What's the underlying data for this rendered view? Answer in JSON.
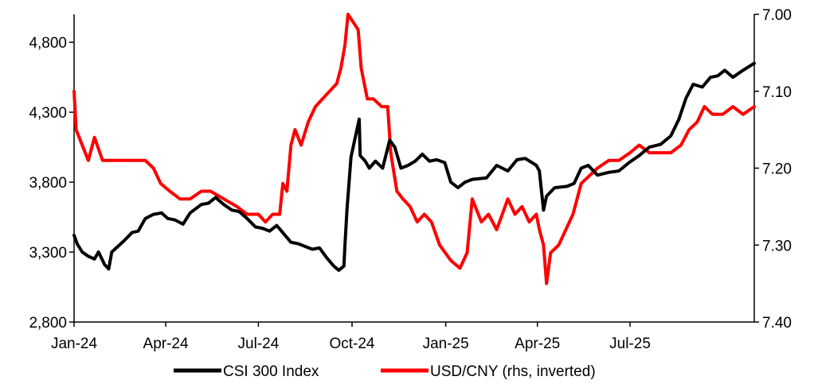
{
  "chart_data": {
    "type": "line",
    "title": "",
    "legend_position": "bottom",
    "grid": false,
    "x_range": [
      "2024-01-02",
      "2025-10-31"
    ],
    "x_ticks": [
      {
        "date": "2024-01-01",
        "label": "Jan-24"
      },
      {
        "date": "2024-04-01",
        "label": "Apr-24"
      },
      {
        "date": "2024-07-01",
        "label": "Jul-24"
      },
      {
        "date": "2024-10-01",
        "label": "Oct-24"
      },
      {
        "date": "2025-01-01",
        "label": "Jan-25"
      },
      {
        "date": "2025-04-01",
        "label": "Apr-25"
      },
      {
        "date": "2025-07-01",
        "label": "Jul-25"
      }
    ],
    "y_left": {
      "range": [
        2800,
        5000
      ],
      "ticks": [
        {
          "value": 2800,
          "label": "2,800"
        },
        {
          "value": 3300,
          "label": "3,300"
        },
        {
          "value": 3800,
          "label": "3,800"
        },
        {
          "value": 4300,
          "label": "4,300"
        },
        {
          "value": 4800,
          "label": "4,800"
        }
      ]
    },
    "y_right": {
      "range": [
        7.0,
        7.4
      ],
      "inverted": true,
      "ticks": [
        {
          "value": 7.0,
          "label": "7.00"
        },
        {
          "value": 7.1,
          "label": "7.10"
        },
        {
          "value": 7.2,
          "label": "7.20"
        },
        {
          "value": 7.3,
          "label": "7.30"
        },
        {
          "value": 7.4,
          "label": "7.40"
        }
      ]
    },
    "series": [
      {
        "name": "CSI 300 Index",
        "axis": "left",
        "color": "#000000",
        "points": [
          [
            "2024-01-02",
            3420
          ],
          [
            "2024-01-05",
            3360
          ],
          [
            "2024-01-10",
            3300
          ],
          [
            "2024-01-16",
            3270
          ],
          [
            "2024-01-22",
            3250
          ],
          [
            "2024-01-26",
            3300
          ],
          [
            "2024-02-01",
            3210
          ],
          [
            "2024-02-05",
            3180
          ],
          [
            "2024-02-08",
            3300
          ],
          [
            "2024-02-20",
            3380
          ],
          [
            "2024-02-28",
            3440
          ],
          [
            "2024-03-05",
            3450
          ],
          [
            "2024-03-12",
            3540
          ],
          [
            "2024-03-20",
            3570
          ],
          [
            "2024-03-28",
            3580
          ],
          [
            "2024-04-03",
            3540
          ],
          [
            "2024-04-10",
            3530
          ],
          [
            "2024-04-18",
            3500
          ],
          [
            "2024-04-25",
            3580
          ],
          [
            "2024-05-06",
            3640
          ],
          [
            "2024-05-13",
            3650
          ],
          [
            "2024-05-20",
            3690
          ],
          [
            "2024-05-28",
            3640
          ],
          [
            "2024-06-05",
            3600
          ],
          [
            "2024-06-12",
            3590
          ],
          [
            "2024-06-20",
            3540
          ],
          [
            "2024-06-28",
            3480
          ],
          [
            "2024-07-05",
            3470
          ],
          [
            "2024-07-12",
            3450
          ],
          [
            "2024-07-19",
            3490
          ],
          [
            "2024-07-26",
            3430
          ],
          [
            "2024-08-02",
            3370
          ],
          [
            "2024-08-09",
            3360
          ],
          [
            "2024-08-16",
            3340
          ],
          [
            "2024-08-23",
            3320
          ],
          [
            "2024-08-30",
            3330
          ],
          [
            "2024-09-06",
            3260
          ],
          [
            "2024-09-13",
            3200
          ],
          [
            "2024-09-18",
            3170
          ],
          [
            "2024-09-23",
            3200
          ],
          [
            "2024-09-24",
            3350
          ],
          [
            "2024-09-26",
            3600
          ],
          [
            "2024-09-30",
            3980
          ],
          [
            "2024-10-08",
            4250
          ],
          [
            "2024-10-09",
            3990
          ],
          [
            "2024-10-14",
            3950
          ],
          [
            "2024-10-18",
            3900
          ],
          [
            "2024-10-24",
            3950
          ],
          [
            "2024-10-31",
            3900
          ],
          [
            "2024-11-07",
            4100
          ],
          [
            "2024-11-12",
            4050
          ],
          [
            "2024-11-18",
            3900
          ],
          [
            "2024-11-25",
            3920
          ],
          [
            "2024-12-02",
            3950
          ],
          [
            "2024-12-09",
            4000
          ],
          [
            "2024-12-16",
            3950
          ],
          [
            "2024-12-23",
            3960
          ],
          [
            "2024-12-31",
            3940
          ],
          [
            "2025-01-06",
            3800
          ],
          [
            "2025-01-13",
            3760
          ],
          [
            "2025-01-20",
            3800
          ],
          [
            "2025-01-27",
            3820
          ],
          [
            "2025-02-10",
            3830
          ],
          [
            "2025-02-20",
            3920
          ],
          [
            "2025-03-03",
            3880
          ],
          [
            "2025-03-12",
            3960
          ],
          [
            "2025-03-20",
            3970
          ],
          [
            "2025-03-31",
            3920
          ],
          [
            "2025-04-03",
            3880
          ],
          [
            "2025-04-07",
            3600
          ],
          [
            "2025-04-10",
            3700
          ],
          [
            "2025-04-18",
            3760
          ],
          [
            "2025-04-30",
            3770
          ],
          [
            "2025-05-07",
            3790
          ],
          [
            "2025-05-14",
            3900
          ],
          [
            "2025-05-21",
            3920
          ],
          [
            "2025-05-30",
            3850
          ],
          [
            "2025-06-10",
            3870
          ],
          [
            "2025-06-20",
            3880
          ],
          [
            "2025-06-30",
            3940
          ],
          [
            "2025-07-10",
            3990
          ],
          [
            "2025-07-20",
            4050
          ],
          [
            "2025-07-31",
            4070
          ],
          [
            "2025-08-10",
            4130
          ],
          [
            "2025-08-18",
            4250
          ],
          [
            "2025-08-25",
            4400
          ],
          [
            "2025-09-01",
            4500
          ],
          [
            "2025-09-10",
            4480
          ],
          [
            "2025-09-18",
            4550
          ],
          [
            "2025-09-25",
            4560
          ],
          [
            "2025-10-02",
            4600
          ],
          [
            "2025-10-10",
            4550
          ],
          [
            "2025-10-20",
            4600
          ],
          [
            "2025-10-31",
            4650
          ]
        ]
      },
      {
        "name": "USD/CNY (rhs, inverted)",
        "axis": "right",
        "color": "#ff0000",
        "points": [
          [
            "2024-01-02",
            7.1
          ],
          [
            "2024-01-04",
            7.15
          ],
          [
            "2024-01-10",
            7.17
          ],
          [
            "2024-01-16",
            7.19
          ],
          [
            "2024-01-22",
            7.16
          ],
          [
            "2024-01-30",
            7.19
          ],
          [
            "2024-02-08",
            7.19
          ],
          [
            "2024-02-20",
            7.19
          ],
          [
            "2024-03-01",
            7.19
          ],
          [
            "2024-03-12",
            7.19
          ],
          [
            "2024-03-20",
            7.2
          ],
          [
            "2024-03-27",
            7.22
          ],
          [
            "2024-04-05",
            7.23
          ],
          [
            "2024-04-15",
            7.24
          ],
          [
            "2024-04-25",
            7.24
          ],
          [
            "2024-05-06",
            7.23
          ],
          [
            "2024-05-15",
            7.23
          ],
          [
            "2024-05-28",
            7.24
          ],
          [
            "2024-06-10",
            7.25
          ],
          [
            "2024-06-20",
            7.26
          ],
          [
            "2024-07-01",
            7.26
          ],
          [
            "2024-07-08",
            7.27
          ],
          [
            "2024-07-15",
            7.26
          ],
          [
            "2024-07-22",
            7.26
          ],
          [
            "2024-07-25",
            7.22
          ],
          [
            "2024-07-29",
            7.23
          ],
          [
            "2024-08-02",
            7.17
          ],
          [
            "2024-08-06",
            7.15
          ],
          [
            "2024-08-12",
            7.17
          ],
          [
            "2024-08-19",
            7.14
          ],
          [
            "2024-08-26",
            7.12
          ],
          [
            "2024-09-02",
            7.11
          ],
          [
            "2024-09-09",
            7.1
          ],
          [
            "2024-09-16",
            7.09
          ],
          [
            "2024-09-20",
            7.07
          ],
          [
            "2024-09-24",
            7.04
          ],
          [
            "2024-09-27",
            7.0
          ],
          [
            "2024-10-02",
            7.01
          ],
          [
            "2024-10-07",
            7.02
          ],
          [
            "2024-10-10",
            7.07
          ],
          [
            "2024-10-16",
            7.11
          ],
          [
            "2024-10-22",
            7.11
          ],
          [
            "2024-10-30",
            7.12
          ],
          [
            "2024-11-05",
            7.12
          ],
          [
            "2024-11-08",
            7.18
          ],
          [
            "2024-11-14",
            7.23
          ],
          [
            "2024-11-20",
            7.24
          ],
          [
            "2024-11-27",
            7.25
          ],
          [
            "2024-12-04",
            7.27
          ],
          [
            "2024-12-11",
            7.26
          ],
          [
            "2024-12-18",
            7.27
          ],
          [
            "2024-12-26",
            7.3
          ],
          [
            "2025-01-06",
            7.32
          ],
          [
            "2025-01-15",
            7.33
          ],
          [
            "2025-01-22",
            7.31
          ],
          [
            "2025-01-27",
            7.24
          ],
          [
            "2025-02-05",
            7.27
          ],
          [
            "2025-02-12",
            7.26
          ],
          [
            "2025-02-20",
            7.28
          ],
          [
            "2025-03-03",
            7.24
          ],
          [
            "2025-03-10",
            7.26
          ],
          [
            "2025-03-17",
            7.25
          ],
          [
            "2025-03-24",
            7.27
          ],
          [
            "2025-03-31",
            7.26
          ],
          [
            "2025-04-03",
            7.28
          ],
          [
            "2025-04-07",
            7.3
          ],
          [
            "2025-04-10",
            7.35
          ],
          [
            "2025-04-14",
            7.31
          ],
          [
            "2025-04-22",
            7.3
          ],
          [
            "2025-05-06",
            7.26
          ],
          [
            "2025-05-14",
            7.22
          ],
          [
            "2025-05-22",
            7.21
          ],
          [
            "2025-05-30",
            7.2
          ],
          [
            "2025-06-10",
            7.19
          ],
          [
            "2025-06-20",
            7.19
          ],
          [
            "2025-07-01",
            7.18
          ],
          [
            "2025-07-10",
            7.17
          ],
          [
            "2025-07-20",
            7.18
          ],
          [
            "2025-07-31",
            7.18
          ],
          [
            "2025-08-10",
            7.18
          ],
          [
            "2025-08-20",
            7.17
          ],
          [
            "2025-08-28",
            7.15
          ],
          [
            "2025-09-05",
            7.14
          ],
          [
            "2025-09-12",
            7.12
          ],
          [
            "2025-09-20",
            7.13
          ],
          [
            "2025-09-30",
            7.13
          ],
          [
            "2025-10-10",
            7.12
          ],
          [
            "2025-10-20",
            7.13
          ],
          [
            "2025-10-31",
            7.12
          ]
        ]
      }
    ]
  }
}
